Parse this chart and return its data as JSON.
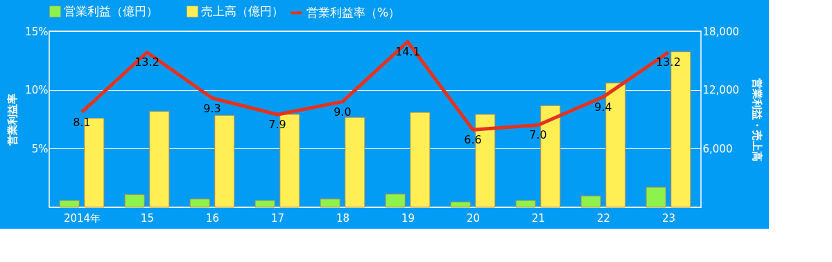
{
  "chart_data": {
    "type": "bar",
    "categories": [
      "2014年",
      "15",
      "16",
      "17",
      "18",
      "19",
      "20",
      "21",
      "22",
      "23"
    ],
    "ylabel": "営業利益率",
    "y2label": "営業利益・売上高",
    "ylim": [
      0,
      15
    ],
    "yticks": [
      {
        "value": 5,
        "label": "5%"
      },
      {
        "value": 10,
        "label": "10%"
      },
      {
        "value": 15,
        "label": "15%"
      }
    ],
    "y2lim": [
      0,
      18000
    ],
    "y2ticks": [
      {
        "value": 6000,
        "label": "6,000"
      },
      {
        "value": 12000,
        "label": "12,000"
      },
      {
        "value": 18000,
        "label": "18,000"
      }
    ],
    "series": [
      {
        "name": "営業利益率（%）",
        "type": "line",
        "color": "#e5321f",
        "values": [
          8.1,
          13.2,
          9.3,
          7.9,
          9.0,
          14.1,
          6.6,
          7.0,
          9.4,
          13.2
        ],
        "value_labels": [
          "8.1",
          "13.2",
          "9.3",
          "7.9",
          "9.0",
          "14.1",
          "6.6",
          "7.0",
          "9.4",
          "13.2"
        ]
      },
      {
        "name": "営業利益（億円）",
        "axis": "y2",
        "color": "#8ef24c",
        "values": [
          700,
          1300,
          850,
          700,
          850,
          1350,
          550,
          700,
          1150,
          2050
        ]
      },
      {
        "name": "売上高（億円）",
        "axis": "y2",
        "color": "#ffef55",
        "values": [
          9100,
          9800,
          9400,
          9500,
          9200,
          9700,
          9500,
          10400,
          12700,
          15900
        ]
      }
    ],
    "grid": "y",
    "legend": "top"
  }
}
